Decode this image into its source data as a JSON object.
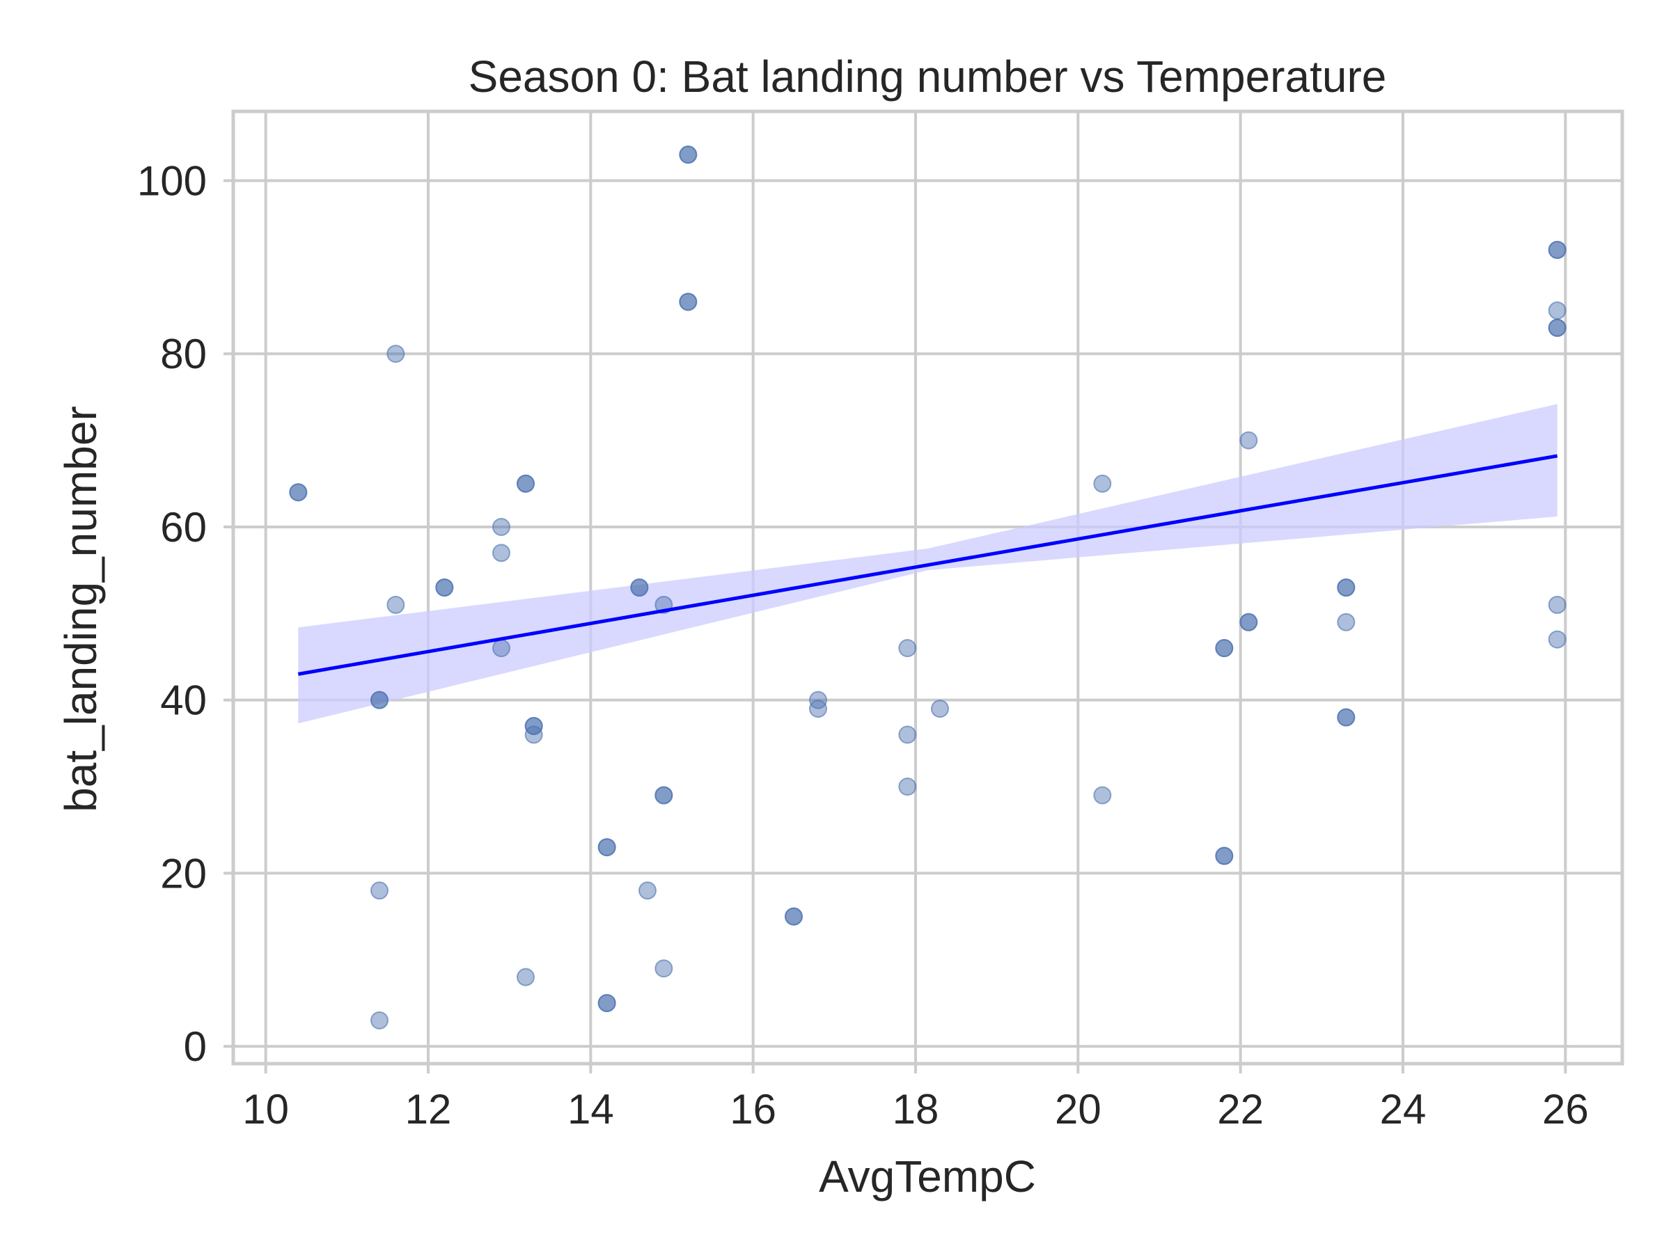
{
  "chart_data": {
    "type": "scatter",
    "title": "Season 0: Bat landing number vs Temperature",
    "xlabel": "AvgTempC",
    "ylabel": "bat_landing_number",
    "xlim": [
      9.6,
      26.7
    ],
    "ylim": [
      -2,
      108
    ],
    "xticks": [
      10,
      12,
      14,
      16,
      18,
      20,
      22,
      24,
      26
    ],
    "yticks": [
      0,
      20,
      40,
      60,
      80,
      100
    ],
    "grid": true,
    "point_color": "#4c72b0",
    "point_opacity": 0.45,
    "regression_color": "#0000ff",
    "band_color": "#ccccff",
    "series": [
      {
        "points": [
          [
            10.4,
            64
          ],
          [
            10.4,
            64
          ],
          [
            11.4,
            40
          ],
          [
            11.4,
            40
          ],
          [
            11.4,
            18
          ],
          [
            11.4,
            3
          ],
          [
            11.6,
            80
          ],
          [
            11.6,
            51
          ],
          [
            12.2,
            53
          ],
          [
            12.2,
            53
          ],
          [
            12.9,
            60
          ],
          [
            12.9,
            57
          ],
          [
            12.9,
            46
          ],
          [
            13.2,
            65
          ],
          [
            13.2,
            65
          ],
          [
            13.2,
            8
          ],
          [
            13.3,
            37
          ],
          [
            13.3,
            37
          ],
          [
            13.3,
            36
          ],
          [
            14.2,
            23
          ],
          [
            14.2,
            23
          ],
          [
            14.2,
            5
          ],
          [
            14.2,
            5
          ],
          [
            14.6,
            53
          ],
          [
            14.6,
            53
          ],
          [
            14.7,
            18
          ],
          [
            14.9,
            51
          ],
          [
            14.9,
            29
          ],
          [
            14.9,
            29
          ],
          [
            14.9,
            9
          ],
          [
            15.2,
            103
          ],
          [
            15.2,
            103
          ],
          [
            15.2,
            86
          ],
          [
            15.2,
            86
          ],
          [
            16.5,
            15
          ],
          [
            16.5,
            15
          ],
          [
            16.8,
            40
          ],
          [
            16.8,
            39
          ],
          [
            17.9,
            46
          ],
          [
            17.9,
            36
          ],
          [
            17.9,
            30
          ],
          [
            18.3,
            39
          ],
          [
            20.3,
            65
          ],
          [
            20.3,
            29
          ],
          [
            21.8,
            46
          ],
          [
            21.8,
            46
          ],
          [
            21.8,
            22
          ],
          [
            21.8,
            22
          ],
          [
            22.1,
            70
          ],
          [
            22.1,
            49
          ],
          [
            22.1,
            49
          ],
          [
            23.3,
            53
          ],
          [
            23.3,
            53
          ],
          [
            23.3,
            49
          ],
          [
            23.3,
            38
          ],
          [
            23.3,
            38
          ],
          [
            25.9,
            92
          ],
          [
            25.9,
            92
          ],
          [
            25.9,
            85
          ],
          [
            25.9,
            83
          ],
          [
            25.9,
            83
          ],
          [
            25.9,
            51
          ],
          [
            25.9,
            47
          ]
        ]
      }
    ],
    "regression": {
      "x_start": 10.4,
      "y_start": 43.0,
      "x_end": 25.9,
      "y_end": 68.2,
      "ci_start": [
        37.3,
        48.4
      ],
      "ci_mid": [
        55.0,
        57.5
      ],
      "ci_end": [
        61.2,
        74.2
      ]
    }
  }
}
